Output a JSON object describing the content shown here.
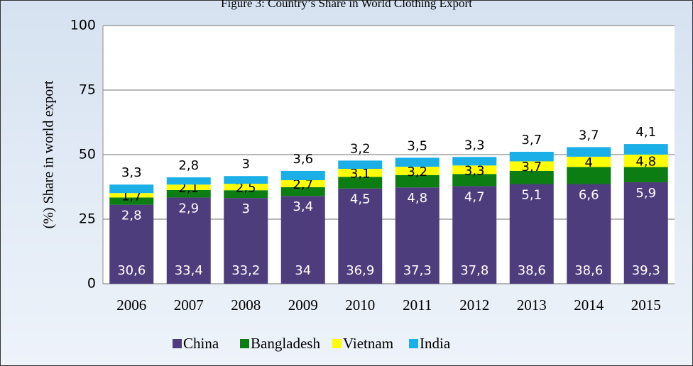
{
  "chart_data": {
    "type": "stacked_bar",
    "title": "Figure 3: Country’s Share in World Clothing Export",
    "y_label": "(%) Share in world export",
    "categories": [
      "2006",
      "2007",
      "2008",
      "2009",
      "2010",
      "2011",
      "2012",
      "2013",
      "2014",
      "2015"
    ],
    "series": [
      {
        "name": "China",
        "color": "#4e3d7c",
        "label_color": "#ffffff",
        "values": [
          30.6,
          33.4,
          33.2,
          34,
          36.9,
          37.3,
          37.8,
          38.6,
          38.6,
          39.3
        ],
        "value_labels": [
          "30,6",
          "33,4",
          "33,2",
          "34",
          "36,9",
          "37,3",
          "37,8",
          "38,6",
          "38,6",
          "39,3"
        ]
      },
      {
        "name": "Bangladesh",
        "color": "#0b7d12",
        "label_color": "#ffffff",
        "values": [
          2.8,
          2.9,
          3,
          3.4,
          4.5,
          4.8,
          4.7,
          5.1,
          6.6,
          5.9
        ],
        "value_labels": [
          "2,8",
          "2,9",
          "3",
          "3,4",
          "4,5",
          "4,8",
          "4,7",
          "5,1",
          "6,6",
          "5,9"
        ]
      },
      {
        "name": "Vietnam",
        "color": "#ffff00",
        "label_color": "#000000",
        "values": [
          1.7,
          2.1,
          2.5,
          2.7,
          3.1,
          3.2,
          3.3,
          3.7,
          4,
          4.8
        ],
        "value_labels": [
          "1,7",
          "2,1",
          "2,5",
          "2,7",
          "3,1",
          "3,2",
          "3,3",
          "3,7",
          "4",
          "4,8"
        ]
      },
      {
        "name": "India",
        "color": "#1aafe6",
        "label_color": "#000000",
        "values": [
          3.3,
          2.8,
          3,
          3.6,
          3.2,
          3.5,
          3.3,
          3.7,
          3.7,
          4.1
        ],
        "value_labels": [
          "3,3",
          "2,8",
          "3",
          "3,6",
          "3,2",
          "3,5",
          "3,3",
          "3,7",
          "3,7",
          "4,1"
        ]
      }
    ],
    "ylim": [
      0,
      100
    ],
    "yticks": [
      0,
      25,
      50,
      75,
      100
    ],
    "grid": true,
    "legend": "bottom"
  }
}
